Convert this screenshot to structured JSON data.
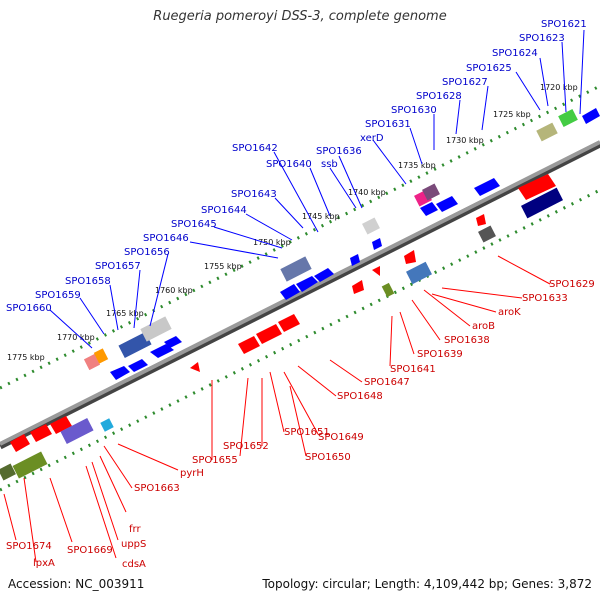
{
  "title": "Ruegeria pomeroyi DSS-3, complete genome",
  "footer": {
    "accession": "Accession: NC_003911",
    "topology": "Topology: circular; Length: 4,109,442 bp; Genes: 3,872"
  },
  "colors": {
    "forward": "#0000ff",
    "reverse": "#ff0000",
    "backbone": "#888888",
    "tick_dots": "#2e8b2e"
  },
  "scale_labels": [
    "1720 kbp",
    "1725 kbp",
    "1730 kbp",
    "1735 kbp",
    "1740 kbp",
    "1745 kbp",
    "1750 kbp",
    "1755 kbp",
    "1760 kbp",
    "1765 kbp",
    "1770 kbp",
    "1775 kbp"
  ],
  "forward_genes": [
    "SPO1621",
    "SPO1623",
    "SPO1624",
    "SPO1625",
    "SPO1627",
    "SPO1628",
    "SPO1630",
    "SPO1631",
    "xerD",
    "ssb",
    "SPO1636",
    "SPO1640",
    "SPO1642",
    "SPO1643",
    "SPO1644",
    "SPO1645",
    "SPO1646",
    "SPO1656",
    "SPO1657",
    "SPO1658",
    "SPO1659",
    "SPO1660"
  ],
  "reverse_genes": [
    "SPO1629",
    "SPO1633",
    "aroK",
    "aroB",
    "SPO1638",
    "SPO1639",
    "SPO1641",
    "SPO1647",
    "SPO1648",
    "SPO1649",
    "SPO1650",
    "SPO1651",
    "SPO1652",
    "SPO1655",
    "pyrH",
    "SPO1663",
    "frr",
    "uppS",
    "cdsA",
    "SPO1669",
    "lpxA",
    "SPO1674"
  ]
}
